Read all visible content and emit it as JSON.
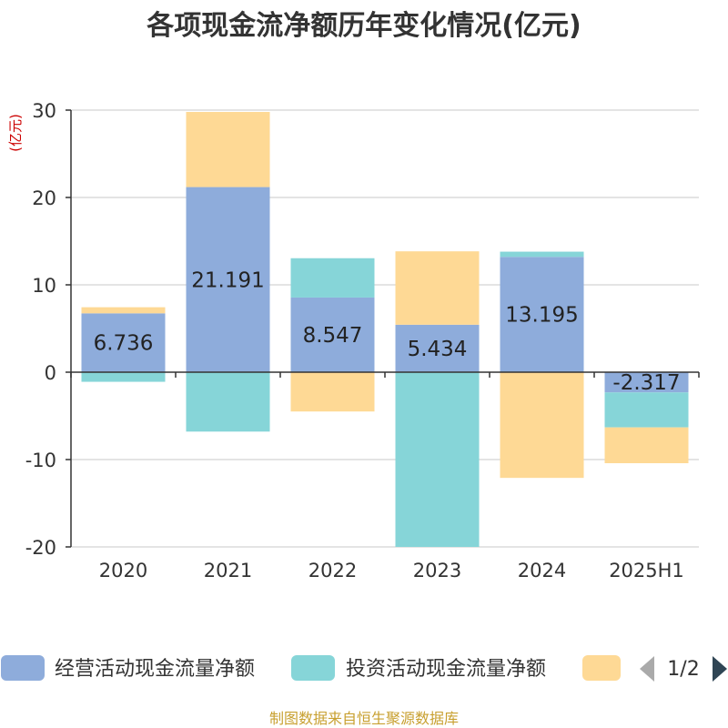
{
  "chart_data": {
    "type": "bar",
    "stacked": true,
    "title": "各项现金流净额历年变化情况(亿元)",
    "ylabel": "(亿元)",
    "xlabel": "",
    "categories": [
      "2020",
      "2021",
      "2022",
      "2023",
      "2024",
      "2025H1"
    ],
    "ylim": [
      -20,
      30
    ],
    "yticks": [
      30,
      20,
      10,
      0,
      -10,
      -20
    ],
    "grid": true,
    "series": [
      {
        "name": "经营活动现金流量净额",
        "color": "#8eacdb",
        "values": [
          6.736,
          21.191,
          8.547,
          5.434,
          13.195,
          -2.317
        ],
        "show_labels": true
      },
      {
        "name": "投资活动现金流量净额",
        "color": "#86d5d8",
        "values": [
          -1.1,
          -6.8,
          4.5,
          -20.0,
          0.6,
          -4.0
        ],
        "show_labels": false
      },
      {
        "name": "",
        "color": "#fed995",
        "values": [
          0.7,
          8.6,
          -4.5,
          8.4,
          -12.1,
          -4.1
        ],
        "show_labels": false
      }
    ],
    "data_labels": [
      "6.736",
      "21.191",
      "8.547",
      "5.434",
      "13.195",
      "-2.317"
    ],
    "legend": {
      "placement": "bottom",
      "page": "1/2"
    }
  },
  "footer": {
    "source": "制图数据来自恒生聚源数据库"
  },
  "colors": {
    "title": "#333333",
    "axis_text": "#333333",
    "ylabel": "#cc0000",
    "footer": "#c8a030",
    "grid": "#c8c8c8",
    "arrow_inactive": "#aaaaaa",
    "arrow_active": "#2f4554"
  }
}
